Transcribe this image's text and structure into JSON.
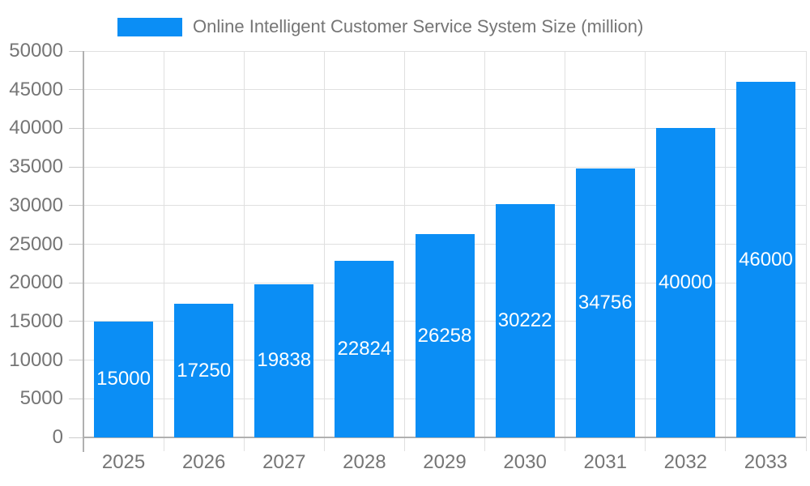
{
  "chart_data": {
    "type": "bar",
    "title": "Online Intelligent Customer Service System Size (million)",
    "legend": {
      "position": "top",
      "entries": [
        "Online Intelligent Customer Service System Size (million)"
      ]
    },
    "categories": [
      "2025",
      "2026",
      "2027",
      "2028",
      "2029",
      "2030",
      "2031",
      "2032",
      "2033"
    ],
    "values": [
      15000,
      17250,
      19838,
      22824,
      26258,
      30222,
      34756,
      40000,
      46000
    ],
    "xlabel": "",
    "ylabel": "",
    "ylim": [
      0,
      50000
    ],
    "ytick_step": 5000,
    "grid": "on",
    "bar_label_position": "inside-center",
    "colors": {
      "bar": "#0b8ef5",
      "axis_text": "#757575",
      "gridline": "#e0e0e0",
      "axis_line": "#b0b0b0",
      "bar_label": "#ffffff",
      "background": "#ffffff"
    }
  }
}
